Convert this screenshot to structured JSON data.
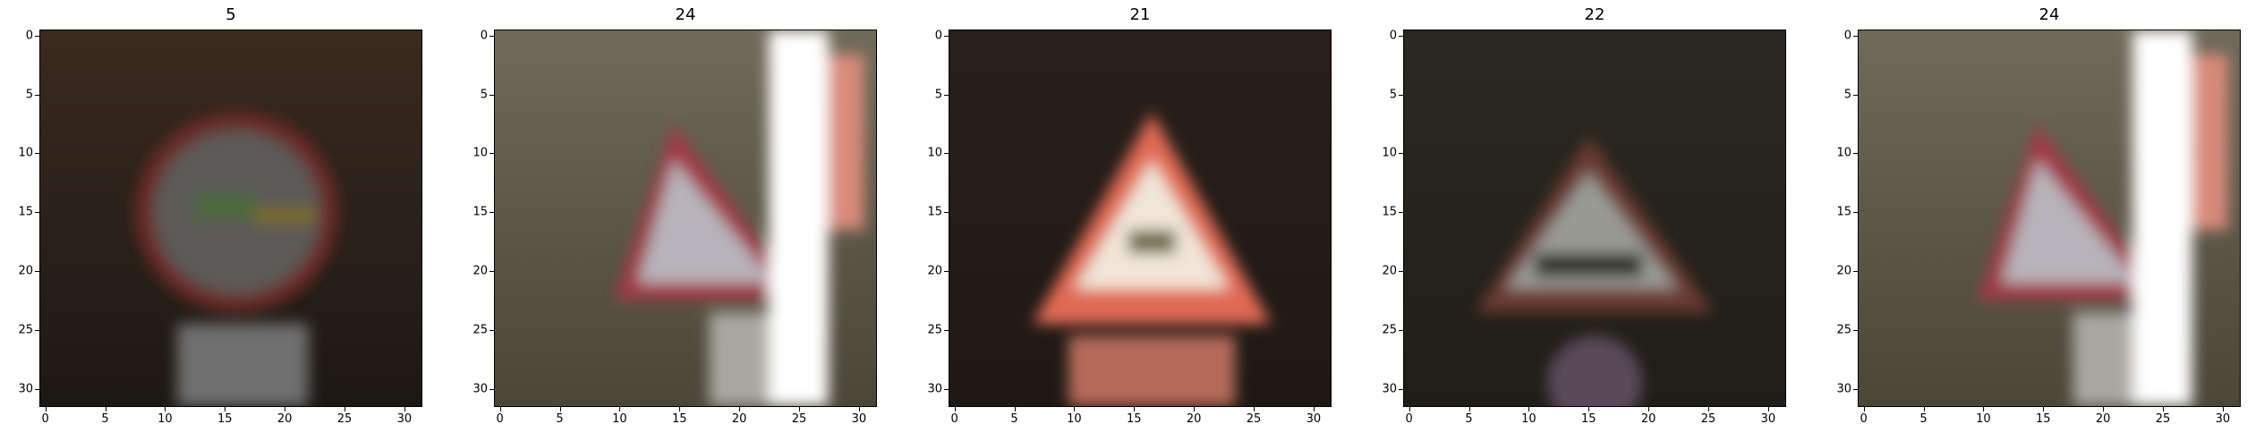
{
  "figure": {
    "panels": [
      {
        "title": "5",
        "scene": "round-sign",
        "colors": {
          "bg_top": "#3a2a1f",
          "bg_bottom": "#1c1814",
          "sign_rim": "#6a2a28",
          "sign_face": "#5c5a56",
          "accent": "#4c6a3a"
        }
      },
      {
        "title": "24",
        "scene": "triangle-bright-edge",
        "colors": {
          "bg_top": "#6f6a5a",
          "bg_bottom": "#4a4638",
          "sign_rim": "#a03a44",
          "sign_face": "#b8b3ba",
          "accent": "#ffffff"
        }
      },
      {
        "title": "21",
        "scene": "triangle-red",
        "colors": {
          "bg_top": "#2a1f1a",
          "bg_bottom": "#1e1814",
          "sign_rim": "#e06a55",
          "sign_face": "#f1e6d8",
          "accent": "#6b6a4a"
        }
      },
      {
        "title": "22",
        "scene": "triangle-dark",
        "colors": {
          "bg_top": "#2b2a22",
          "bg_bottom": "#1f1d17",
          "sign_rim": "#6b3a32",
          "sign_face": "#9a9a94",
          "accent": "#2f332b"
        }
      },
      {
        "title": "24",
        "scene": "triangle-bright-edge",
        "colors": {
          "bg_top": "#6f6a5a",
          "bg_bottom": "#4a4638",
          "sign_rim": "#a03a44",
          "sign_face": "#b8b3ba",
          "accent": "#ffffff"
        }
      }
    ],
    "x_ticks": [
      "0",
      "5",
      "10",
      "15",
      "20",
      "25",
      "30"
    ],
    "y_ticks": [
      "0",
      "5",
      "10",
      "15",
      "20",
      "25",
      "30"
    ]
  }
}
